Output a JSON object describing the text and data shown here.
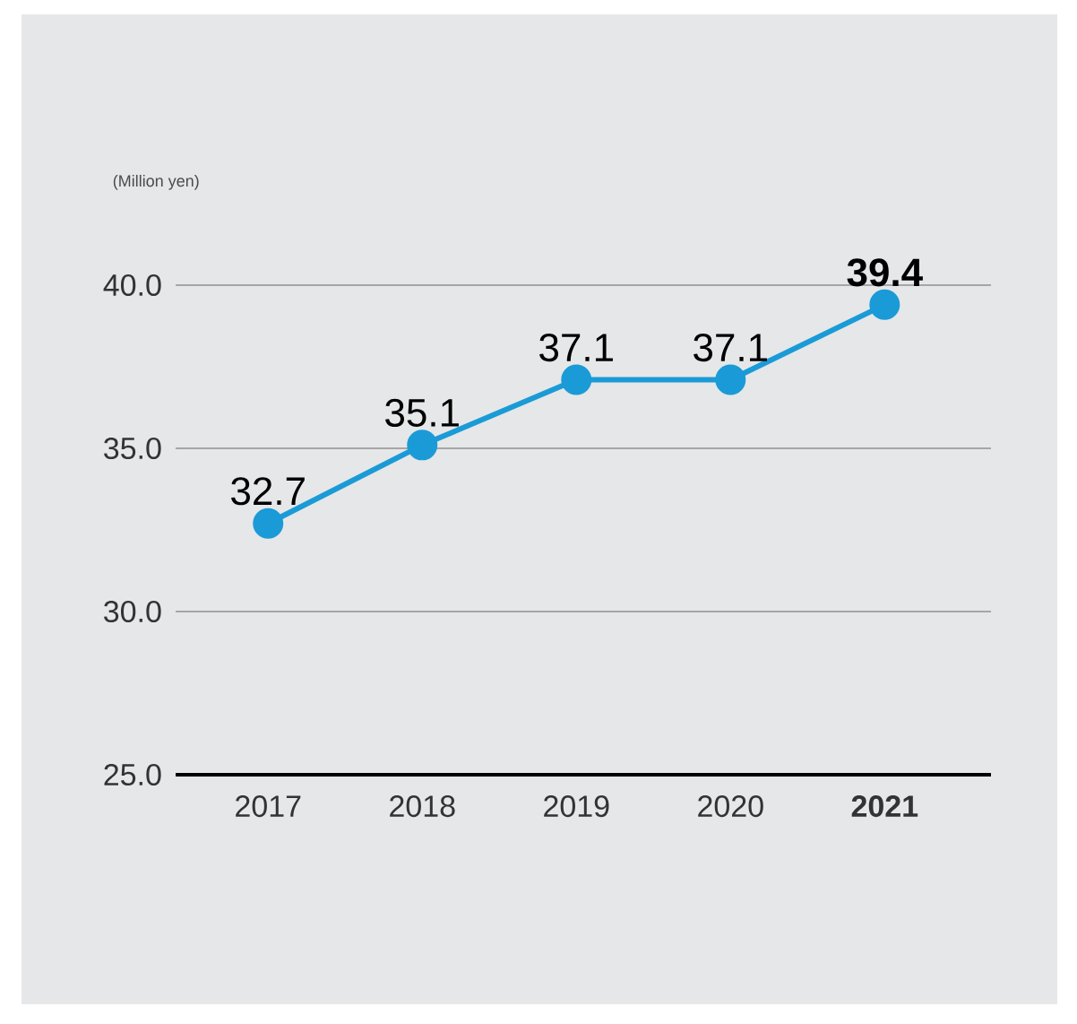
{
  "chart_data": {
    "type": "line",
    "annotations": [
      "(Million yen)"
    ],
    "categories": [
      "2017",
      "2018",
      "2019",
      "2020",
      "**2021**"
    ],
    "series": [
      {
        "color": "#1a9bd7",
        "values": [
          32.7,
          35.1,
          37.1,
          37.1,
          39.4
        ],
        "value_labels": [
          "32.7",
          "35.1",
          "37.1",
          "37.1",
          "**39.4**"
        ]
      }
    ],
    "ylim": [
      25,
      40
    ],
    "yticks": [
      {
        "value": 25,
        "label": "25.0"
      },
      {
        "value": 30,
        "label": "30.0"
      },
      {
        "value": 35,
        "label": "35.0"
      },
      {
        "value": 40,
        "label": "40.0"
      }
    ],
    "grid": "y",
    "marker": "circle",
    "line_style": "solid"
  }
}
